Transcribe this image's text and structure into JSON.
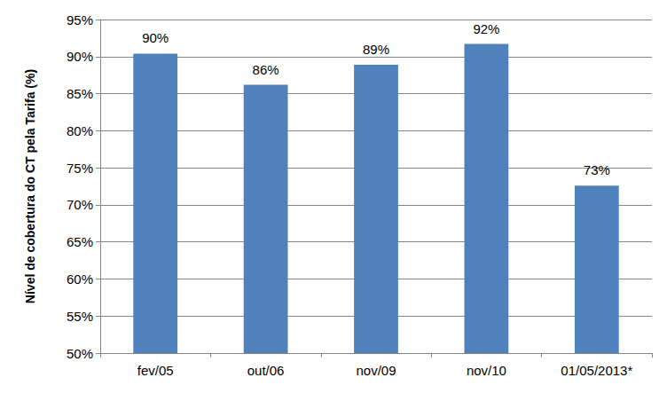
{
  "chart_data": {
    "type": "bar",
    "y_label": "Nível de cobertura do CT pela Tarifa (%)",
    "categories": [
      "fev/05",
      "out/06",
      "nov/09",
      "nov/10",
      "01/05/2013*"
    ],
    "values": [
      90.4,
      86.2,
      88.9,
      91.7,
      72.6
    ],
    "value_labels": [
      "90%",
      "86%",
      "89%",
      "92%",
      "73%"
    ],
    "color": "#4f81bd",
    "ylim": [
      50,
      95
    ],
    "yticks": [
      {
        "value": 50,
        "label": "50%"
      },
      {
        "value": 55,
        "label": "55%"
      },
      {
        "value": 60,
        "label": "60%"
      },
      {
        "value": 65,
        "label": "65%"
      },
      {
        "value": 70,
        "label": "70%"
      },
      {
        "value": 75,
        "label": "75%"
      },
      {
        "value": 80,
        "label": "80%"
      },
      {
        "value": 85,
        "label": "85%"
      },
      {
        "value": 90,
        "label": "90%"
      },
      {
        "value": 95,
        "label": "95%"
      }
    ],
    "grid": true,
    "data_labels": true
  }
}
